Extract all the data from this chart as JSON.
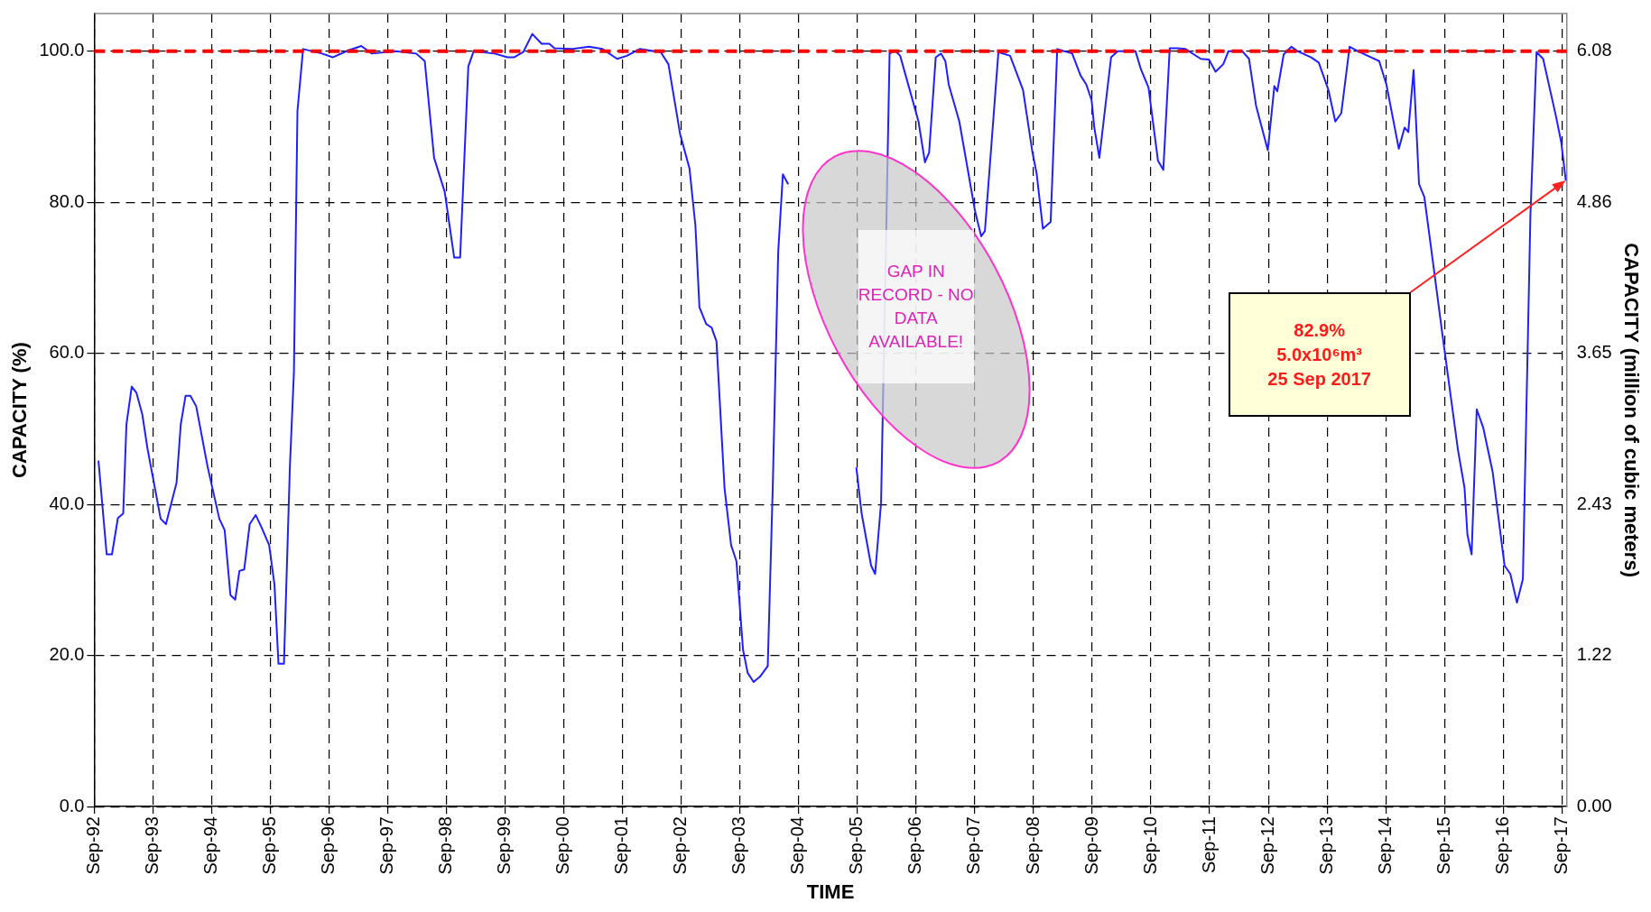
{
  "chart_data": {
    "type": "line",
    "xlabel": "TIME",
    "ylabel": "CAPACITY (%)",
    "y2label": "CAPACITY (million of cubic meters)",
    "annotations": [
      "GAP IN RECORD - NO DATA AVAILABLE!",
      "82.9%\n5.0x10⁶m³\n25 Sep 2017"
    ],
    "series": [
      {
        "color": "#1f1fff",
        "x": [
          "1992-09-27",
          "1992-11-17",
          "1992-12-20",
          "1993-01-26",
          "1993-02-28",
          "1993-03-20",
          "1993-04-22",
          "1993-05-21",
          "1993-06-27",
          "1993-07-29",
          "1993-10-19",
          "1993-11-21",
          "1994-01-26",
          "1994-02-21",
          "1994-03-23",
          "1994-04-22",
          "1994-05-28",
          "1994-08-07",
          "1994-10-19",
          "1994-11-21",
          "1994-12-27",
          "1995-01-26",
          "1995-02-21",
          "1995-03-23",
          "1995-04-26",
          "1995-06-02",
          "1995-07-08",
          "1995-08-25",
          "1995-09-27",
          "1995-10-22",
          "1995-11-25",
          "1996-01-01",
          "1996-01-26",
          "1996-02-17",
          "1996-03-23",
          "1996-07-19",
          "1996-09-23",
          "1996-12-27",
          "1997-03-20",
          "1997-05-25",
          "1997-10-19",
          "1998-02-25",
          "1998-04-19",
          "1998-06-16",
          "1998-08-21",
          "1998-10-19",
          "1998-11-25",
          "1999-01-15",
          "1999-02-17",
          "1999-06-27",
          "1999-09-16",
          "1999-10-26",
          "1999-12-23",
          "2000-02-17",
          "2000-04-15",
          "2000-06-02",
          "2000-07-04",
          "2000-10-26",
          "2001-02-03",
          "2001-04-29",
          "2001-07-29",
          "2001-09-27",
          "2001-12-16",
          "2002-04-26",
          "2002-06-13",
          "2002-08-25",
          "2002-10-22",
          "2002-11-28",
          "2002-12-23",
          "2003-02-03",
          "2003-03-09",
          "2003-04-08",
          "2003-05-28",
          "2003-07-08",
          "2003-08-10",
          "2003-09-20",
          "2003-10-19",
          "2003-11-25",
          "2004-01-04",
          "2004-02-21",
          "2004-03-23",
          "2004-04-26",
          "2004-05-25",
          "2004-06-27",
          "2005-01-26",
          "2005-08-25",
          "2005-09-27",
          "2005-11-25",
          "2005-12-20",
          "2006-01-26",
          "2006-03-20",
          "2006-04-22",
          "2006-05-25",
          "2006-09-16",
          "2006-10-26",
          "2006-11-21",
          "2007-01-01",
          "2007-02-03",
          "2007-03-02",
          "2007-03-23",
          "2007-05-28",
          "2007-09-02",
          "2007-10-11",
          "2007-11-03",
          "2008-01-26",
          "2008-04-08",
          "2008-06-27",
          "2008-08-25",
          "2008-09-20",
          "2008-10-29",
          "2008-12-16",
          "2009-01-26",
          "2009-04-29",
          "2009-06-20",
          "2009-07-26",
          "2009-08-28",
          "2009-09-13",
          "2009-10-15",
          "2009-12-27",
          "2010-02-07",
          "2010-05-28",
          "2010-07-01",
          "2010-08-17",
          "2010-10-15",
          "2010-11-17",
          "2010-12-27",
          "2011-02-14",
          "2011-04-04",
          "2011-07-08",
          "2011-08-28",
          "2011-10-08",
          "2011-11-25",
          "2011-12-27",
          "2012-03-23",
          "2012-05-03",
          "2012-06-16",
          "2012-08-28",
          "2012-10-08",
          "2012-10-26",
          "2012-12-05",
          "2013-01-22",
          "2013-03-02",
          "2013-05-25",
          "2013-07-11",
          "2013-09-09",
          "2013-10-22",
          "2013-11-28",
          "2014-01-19",
          "2014-03-13",
          "2014-07-22",
          "2014-09-05",
          "2014-11-21",
          "2014-12-27",
          "2015-01-19",
          "2015-02-21",
          "2015-03-27",
          "2015-04-29",
          "2015-06-09",
          "2015-08-25",
          "2015-11-25",
          "2016-01-04",
          "2016-01-22",
          "2016-02-17",
          "2016-03-20",
          "2016-04-29",
          "2016-06-27",
          "2016-09-09",
          "2016-10-15",
          "2016-11-25",
          "2017-01-01",
          "2017-02-17",
          "2017-03-27",
          "2017-05-07",
          "2017-07-26",
          "2017-08-28",
          "2017-09-25"
        ],
        "values": [
          45.8,
          33.4,
          33.4,
          38.2,
          38.8,
          50.6,
          55.6,
          54.8,
          51.9,
          47.4,
          38.1,
          37.4,
          42.9,
          50.6,
          54.4,
          54.4,
          53.0,
          45.0,
          38.1,
          36.6,
          28.0,
          27.4,
          31.2,
          31.4,
          37.4,
          38.6,
          37.0,
          34.6,
          29.4,
          18.9,
          18.9,
          45.0,
          57.5,
          92.1,
          100.3,
          99.7,
          99.2,
          100.1,
          100.7,
          99.7,
          100,
          99.7,
          98.7,
          85.9,
          81.4,
          72.7,
          72.7,
          98.0,
          100,
          99.7,
          99.2,
          99.2,
          99.9,
          102.3,
          101.0,
          101.0,
          100.4,
          100.3,
          100.6,
          100.3,
          99.0,
          99.4,
          100.3,
          99.9,
          98.3,
          89.0,
          84.5,
          76.9,
          66.1,
          63.9,
          63.4,
          61.6,
          42.2,
          34.6,
          32.5,
          20.8,
          17.7,
          16.5,
          17.2,
          18.6,
          42.2,
          73.4,
          83.7,
          82.4,
          null,
          44.9,
          38.8,
          31.9,
          30.8,
          40.2,
          99.7,
          100.1,
          99.4,
          90.7,
          85.3,
          86.6,
          99.2,
          99.7,
          98.7,
          95.6,
          90.7,
          78.9,
          75.5,
          76.2,
          99.9,
          99.4,
          94.9,
          86.6,
          83.8,
          76.5,
          77.4,
          100.3,
          99.7,
          96.8,
          95.6,
          93.5,
          90.0,
          85.9,
          99.2,
          100,
          100,
          97.6,
          95.2,
          85.5,
          84.3,
          100.4,
          100.4,
          100.3,
          99.0,
          98.9,
          97.3,
          98.3,
          100,
          100,
          99.0,
          92.8,
          86.9,
          95.4,
          94.7,
          99.6,
          100.6,
          100,
          99.2,
          98.5,
          94.9,
          90.7,
          91.8,
          100.6,
          100,
          98.7,
          95.6,
          87.1,
          89.9,
          89.3,
          97.5,
          82.4,
          80.7,
          74.1,
          61.6,
          47.1,
          42.2,
          36.0,
          33.4,
          52.6,
          50.2,
          44.3,
          31.9,
          30.8,
          27.0,
          30.1,
          78.3,
          99.9,
          99.0,
          91.4,
          87.9,
          82.9
        ]
      }
    ],
    "xlim": [
      "1992-09-01",
      "2017-10-01"
    ],
    "xticks": [
      {
        "value": "1992-09",
        "label": "Sep-92"
      },
      {
        "value": "1993-09",
        "label": "Sep-93"
      },
      {
        "value": "1994-09",
        "label": "Sep-94"
      },
      {
        "value": "1995-09",
        "label": "Sep-95"
      },
      {
        "value": "1996-09",
        "label": "Sep-96"
      },
      {
        "value": "1997-09",
        "label": "Sep-97"
      },
      {
        "value": "1998-09",
        "label": "Sep-98"
      },
      {
        "value": "1999-09",
        "label": "Sep-99"
      },
      {
        "value": "2000-09",
        "label": "Sep-00"
      },
      {
        "value": "2001-09",
        "label": "Sep-01"
      },
      {
        "value": "2002-09",
        "label": "Sep-02"
      },
      {
        "value": "2003-09",
        "label": "Sep-03"
      },
      {
        "value": "2004-09",
        "label": "Sep-04"
      },
      {
        "value": "2005-09",
        "label": "Sep-05"
      },
      {
        "value": "2006-09",
        "label": "Sep-06"
      },
      {
        "value": "2007-09",
        "label": "Sep-07"
      },
      {
        "value": "2008-09",
        "label": "Sep-08"
      },
      {
        "value": "2009-09",
        "label": "Sep-09"
      },
      {
        "value": "2010-09",
        "label": "Sep-10"
      },
      {
        "value": "2011-09",
        "label": "Sep-11"
      },
      {
        "value": "2012-09",
        "label": "Sep-12"
      },
      {
        "value": "2013-09",
        "label": "Sep-13"
      },
      {
        "value": "2014-09",
        "label": "Sep-14"
      },
      {
        "value": "2015-09",
        "label": "Sep-15"
      },
      {
        "value": "2016-09",
        "label": "Sep-16"
      },
      {
        "value": "2017-09",
        "label": "Sep-17"
      }
    ],
    "ylim": [
      0,
      105
    ],
    "yticks": [
      {
        "value": 0,
        "label": "0.0"
      },
      {
        "value": 20,
        "label": "20.0"
      },
      {
        "value": 40,
        "label": "40.0"
      },
      {
        "value": 60,
        "label": "60.0"
      },
      {
        "value": 80,
        "label": "80.0"
      },
      {
        "value": 100,
        "label": "100.0"
      }
    ],
    "y2lim": [
      0,
      6.38
    ],
    "y2ticks": [
      {
        "value": 0,
        "label": "0.00"
      },
      1.22,
      2.43,
      3.65,
      4.86,
      6.08
    ],
    "ref_lines": [
      {
        "axis": "y",
        "value": 100,
        "color": "#ff0000",
        "line_style": "dashed"
      }
    ],
    "grid": true,
    "legend": false,
    "marker": "none",
    "line_style": "solid"
  }
}
